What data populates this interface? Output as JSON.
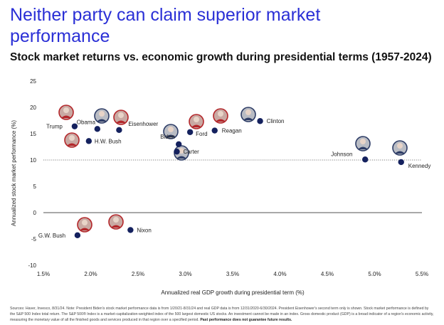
{
  "header": {
    "title_line1": "Neither party can claim superior market",
    "title_line2": "performance",
    "subtitle": "Stock market returns vs. economic growth during presidential terms (1957-2024)"
  },
  "colors": {
    "title": "#2a2fd6",
    "dot": "#14215e",
    "republican": "#b3262a",
    "democrat": "#2d3c66"
  },
  "chart_data": {
    "type": "scatter",
    "title": "Stock market returns vs. economic growth during presidential terms (1957-2024)",
    "xlabel": "Annualized real GDP growth during presidential term (%)",
    "ylabel": "Annualized stock market performance (%)",
    "xlim": [
      1.5,
      5.5
    ],
    "ylim": [
      -10,
      25
    ],
    "xticks": [
      1.5,
      2.0,
      2.5,
      3.0,
      3.5,
      4.0,
      4.5,
      5.0,
      5.5
    ],
    "xtick_labels": [
      "1.5%",
      "2.0%",
      "2.5%",
      "3.0%",
      "3.5%",
      "4.0%",
      "4.5%",
      "5.0%",
      "5.5%"
    ],
    "yticks": [
      -10,
      -5,
      0,
      5,
      10,
      15,
      20,
      25
    ],
    "ytick_labels": [
      "-10",
      "-5",
      "0",
      "5",
      "10",
      "15",
      "20",
      "25"
    ],
    "reference_lines": [
      {
        "axis": "y",
        "value": 10,
        "style": "dotted"
      }
    ],
    "points": [
      {
        "name": "Trump",
        "x": 1.83,
        "y": 16.4,
        "party": "R"
      },
      {
        "name": "Obama",
        "x": 2.07,
        "y": 15.9,
        "party": "D"
      },
      {
        "name": "H.W. Bush",
        "x": 1.98,
        "y": 13.6,
        "party": "R"
      },
      {
        "name": "Eisenhower",
        "x": 2.3,
        "y": 15.7,
        "party": "R"
      },
      {
        "name": "Biden",
        "x": 2.93,
        "y": 13.0,
        "party": "D"
      },
      {
        "name": "Carter",
        "x": 2.91,
        "y": 11.6,
        "party": "D"
      },
      {
        "name": "Ford",
        "x": 3.05,
        "y": 15.3,
        "party": "R"
      },
      {
        "name": "Reagan",
        "x": 3.31,
        "y": 15.6,
        "party": "R"
      },
      {
        "name": "Clinton",
        "x": 3.79,
        "y": 17.4,
        "party": "D"
      },
      {
        "name": "Johnson",
        "x": 4.9,
        "y": 10.1,
        "party": "D"
      },
      {
        "name": "Kennedy",
        "x": 5.28,
        "y": 9.6,
        "party": "D"
      },
      {
        "name": "G.W. Bush",
        "x": 1.86,
        "y": -4.3,
        "party": "R"
      },
      {
        "name": "Nixon",
        "x": 2.42,
        "y": -3.3,
        "party": "R"
      }
    ]
  },
  "footnote": {
    "text": "Sources: Haver, Invesco, 8/31/24. Note: President Biden's stock market performance data is from 1/20/21-8/31/24 and real GDP data is from 12/31/2020-6/30/2024. President Eisenhower's second term only is shown. Stock market performance is defined by the S&P 500 Index total return. The S&P 500® Index is a market-capitalization-weighted index of the 500 largest domestic US stocks. An investment cannot be made in an index. Gross domestic product (GDP) is a broad indicator of a region's economic activity, measuring the monetary value of all the finished goods and services produced in that region over a specified period.",
    "bold": "Past performance does not guarantee future results."
  }
}
